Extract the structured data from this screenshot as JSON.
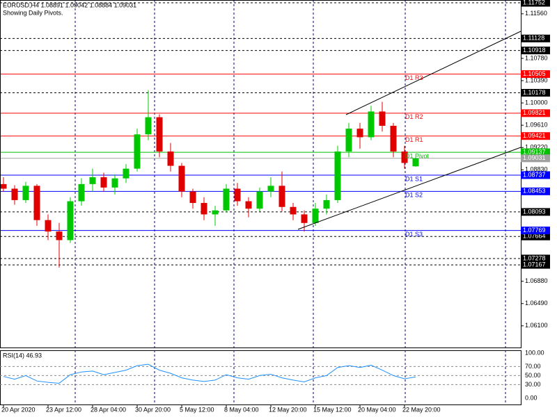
{
  "chart_data": {
    "type": "candlestick",
    "title": "EURUSD,H4  1.08891 1.09042 1.08884 1.09031",
    "subtitle": "Showing Daily Pivots.",
    "categories": [
      "20 Apr 2020",
      null,
      null,
      null,
      "23 Apr 12:00",
      null,
      null,
      null,
      "28 Apr 04:00",
      null,
      null,
      null,
      "30 Apr 20:00",
      null,
      null,
      null,
      "5 May 12:00",
      null,
      null,
      null,
      "8 May 04:00",
      null,
      null,
      null,
      "12 May 20:00",
      null,
      null,
      null,
      "15 May 12:00",
      null,
      null,
      null,
      "20 May 04:00",
      null,
      null,
      null,
      "22 May 20:00",
      null
    ],
    "open": [
      1.0858,
      1.085,
      1.083,
      1.0855,
      1.0795,
      1.0775,
      1.076,
      1.0828,
      1.0858,
      1.087,
      1.0852,
      1.0868,
      1.0885,
      1.0945,
      1.0975,
      1.0915,
      1.089,
      1.0845,
      1.0825,
      1.0805,
      1.0812,
      1.085,
      1.0828,
      1.0815,
      1.0845,
      1.0855,
      1.0818,
      1.0805,
      1.079,
      1.0815,
      1.083,
      1.0915,
      1.0955,
      1.094,
      1.0985,
      1.096,
      1.0915,
      1.08891
    ],
    "high": [
      1.087,
      1.0856,
      1.0862,
      1.0858,
      1.0805,
      1.079,
      1.0835,
      1.0868,
      1.0885,
      1.0878,
      1.0875,
      1.0893,
      1.0955,
      1.1022,
      1.098,
      1.093,
      1.0895,
      1.085,
      1.0835,
      1.082,
      1.0858,
      1.086,
      1.0835,
      1.0852,
      1.087,
      1.088,
      1.0825,
      1.0812,
      1.0825,
      1.084,
      1.0925,
      1.0965,
      1.0965,
      1.0995,
      1.1002,
      1.0965,
      1.0925,
      1.09042
    ],
    "low": [
      1.0845,
      1.0822,
      1.0825,
      1.0785,
      1.076,
      1.0712,
      1.0755,
      1.082,
      1.0845,
      1.0845,
      1.084,
      1.086,
      1.088,
      1.0935,
      1.0905,
      1.088,
      1.0835,
      1.0815,
      1.0795,
      1.0785,
      1.0808,
      1.082,
      1.08,
      1.081,
      1.0835,
      1.081,
      1.0795,
      1.0775,
      1.0785,
      1.0805,
      1.0825,
      1.0905,
      1.092,
      1.0935,
      1.095,
      1.0905,
      1.0885,
      1.08884
    ],
    "close": [
      1.085,
      1.083,
      1.0855,
      1.0795,
      1.0775,
      1.076,
      1.0828,
      1.0858,
      1.087,
      1.0852,
      1.0868,
      1.0885,
      1.0945,
      1.0975,
      1.0915,
      1.089,
      1.0845,
      1.0825,
      1.0805,
      1.0812,
      1.085,
      1.0828,
      1.0815,
      1.0845,
      1.0855,
      1.0818,
      1.0805,
      1.079,
      1.0815,
      1.083,
      1.0915,
      1.0955,
      1.094,
      1.0985,
      1.096,
      1.0915,
      1.0895,
      1.09031
    ],
    "up_color": "#00c800",
    "down_color": "#e00000",
    "ylim": [
      1.05721,
      1.11801
    ],
    "yticks": [
      {
        "value": 1.1156,
        "label": "1.11560"
      },
      {
        "value": 1.1078,
        "label": "1.10780"
      },
      {
        "value": 1.1039,
        "label": "1.10390"
      },
      {
        "value": 1.1,
        "label": "1.10000"
      },
      {
        "value": 1.0961,
        "label": "1.09610"
      },
      {
        "value": 1.0922,
        "label": "1.09220"
      },
      {
        "value": 1.0883,
        "label": "1.08830"
      },
      {
        "value": 1.0688,
        "label": "1.06880"
      },
      {
        "value": 1.0649,
        "label": "1.06490"
      },
      {
        "value": 1.061,
        "label": "1.06100"
      }
    ],
    "levels": [
      {
        "value": 1.11752,
        "label": "1.11752"
      },
      {
        "value": 1.11128,
        "label": "1.11128"
      },
      {
        "value": 1.10918,
        "label": "1.10918"
      },
      {
        "value": 1.10178,
        "label": "1.10178"
      },
      {
        "value": 1.08093,
        "label": "1.08093"
      },
      {
        "value": 1.07664,
        "label": "1.07664"
      },
      {
        "value": 1.07278,
        "label": "1.07278"
      },
      {
        "value": 1.07167,
        "label": "1.07167"
      }
    ],
    "pivots": [
      {
        "name": "D1 R3",
        "value": 1.10505,
        "label": "1.10505",
        "color": "#ff0000"
      },
      {
        "name": "D1 R2",
        "value": 1.09821,
        "label": "1.09821",
        "color": "#ff0000"
      },
      {
        "name": "D1 R1",
        "value": 1.09421,
        "label": "1.09421",
        "color": "#ff0000"
      },
      {
        "name": "D1 Pivot",
        "value": 1.09137,
        "label": "1.09137",
        "color": "#00c000"
      },
      {
        "name": "D1 S1",
        "value": 1.08737,
        "label": "1.08737",
        "color": "#0000ff"
      },
      {
        "name": "D1 S2",
        "value": 1.08453,
        "label": "1.08453",
        "color": "#0000ff"
      },
      {
        "name": "D1 S3",
        "value": 1.07769,
        "label": "1.07769",
        "color": "#0000ff"
      }
    ],
    "price_line": {
      "value": 1.09031,
      "label": "1.09031",
      "color": "#a0a0a0"
    },
    "rsi": {
      "label": "RSI(14) 46.93",
      "color": "#1e90ff",
      "values": [
        48,
        42,
        50,
        38,
        35,
        33,
        52,
        58,
        60,
        52,
        57,
        62,
        72,
        75,
        62,
        55,
        45,
        40,
        37,
        40,
        52,
        45,
        42,
        50,
        53,
        45,
        40,
        36,
        45,
        50,
        68,
        72,
        68,
        73,
        62,
        50,
        43,
        46.93
      ],
      "ylim": [
        -14,
        106
      ],
      "yticks": [
        {
          "value": 100,
          "label": "100.00"
        },
        {
          "value": 70,
          "label": "70.00"
        },
        {
          "value": 50,
          "label": "50.00"
        },
        {
          "value": 30,
          "label": "30.00"
        },
        {
          "value": 0,
          "label": "0.00"
        }
      ]
    }
  }
}
